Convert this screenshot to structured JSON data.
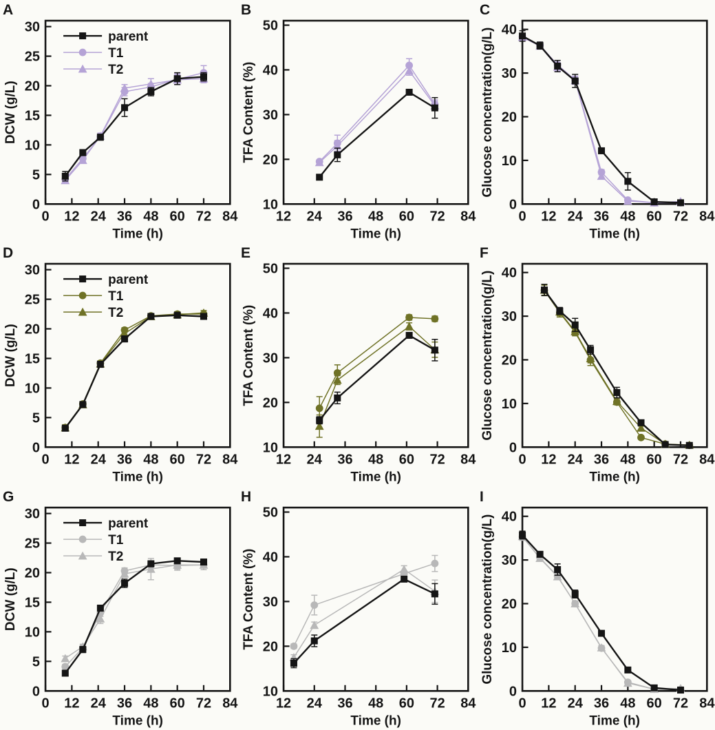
{
  "figure": {
    "background": "#fbfbf7",
    "ink_color": "#151515",
    "accent_colors": {
      "row1_purple": "#b5a3d6",
      "row2_olive": "#6f7226",
      "row3_gray": "#b8b8b8"
    }
  },
  "chart_data": [
    {
      "id": "A",
      "type": "line",
      "xlabel": "Time (h)",
      "ylabel": "DCW (g/L)",
      "xlim": [
        0,
        84
      ],
      "xticks": [
        0,
        12,
        24,
        36,
        48,
        60,
        72,
        84
      ],
      "ylim": [
        0,
        31
      ],
      "yticks": [
        0,
        5,
        10,
        15,
        20,
        25,
        30
      ],
      "legend": true,
      "legend_position": "upper-left",
      "grid": false,
      "x": [
        9,
        17,
        25,
        36,
        48,
        60,
        72
      ],
      "series": [
        {
          "name": "parent",
          "color": "#151515",
          "marker": "square",
          "values": [
            4.7,
            8.7,
            11.3,
            16.3,
            19.0,
            21.2,
            21.5
          ],
          "errors": [
            0.8,
            0.5,
            0.5,
            1.5,
            0.7,
            1.0,
            0.7
          ]
        },
        {
          "name": "T1",
          "color": "#b5a3d6",
          "marker": "circle",
          "values": [
            4.2,
            7.7,
            11.4,
            19.0,
            19.8,
            21.1,
            22.2
          ],
          "errors": [
            0.6,
            0.5,
            0.5,
            0.7,
            0.6,
            0.9,
            1.2
          ]
        },
        {
          "name": "T2",
          "color": "#b5a3d6",
          "marker": "triangle",
          "values": [
            4.0,
            7.4,
            11.5,
            19.6,
            20.3,
            21.0,
            21.2
          ],
          "errors": [
            0.5,
            0.4,
            0.5,
            0.6,
            0.9,
            0.8,
            0.7
          ]
        }
      ]
    },
    {
      "id": "B",
      "type": "line",
      "xlabel": "Time (h)",
      "ylabel": "TFA Content (%)",
      "xlim": [
        12,
        84
      ],
      "xticks": [
        12,
        24,
        36,
        48,
        60,
        72,
        84
      ],
      "ylim": [
        10,
        51
      ],
      "yticks": [
        10,
        20,
        30,
        40,
        50
      ],
      "legend": false,
      "grid": false,
      "x": [
        26,
        33,
        61,
        71
      ],
      "series": [
        {
          "name": "parent",
          "color": "#151515",
          "marker": "square",
          "values": [
            16.0,
            21.0,
            35.0,
            31.5
          ],
          "errors": [
            0.4,
            1.5,
            0.5,
            2.3
          ]
        },
        {
          "name": "T1",
          "color": "#b5a3d6",
          "marker": "circle",
          "values": [
            19.5,
            23.6,
            41.0,
            32.3
          ],
          "errors": [
            0.4,
            1.8,
            1.5,
            1.0
          ]
        },
        {
          "name": "T2",
          "color": "#b5a3d6",
          "marker": "triangle",
          "values": [
            19.3,
            23.0,
            39.8,
            32.0
          ],
          "errors": [
            0.4,
            1.2,
            1.0,
            1.0
          ]
        }
      ]
    },
    {
      "id": "C",
      "type": "line",
      "xlabel": "Time (h)",
      "ylabel": "Glucose concentration(g/L)",
      "xlim": [
        0,
        84
      ],
      "xticks": [
        0,
        12,
        24,
        36,
        48,
        60,
        72,
        84
      ],
      "ylim": [
        0,
        42
      ],
      "yticks": [
        0,
        10,
        20,
        30,
        40
      ],
      "legend": false,
      "grid": false,
      "x": [
        0,
        8,
        16,
        24,
        36,
        48,
        60,
        72
      ],
      "series": [
        {
          "name": "parent",
          "color": "#151515",
          "marker": "square",
          "values": [
            38.5,
            36.3,
            31.6,
            28.2,
            12.2,
            5.2,
            0.5,
            0.3
          ],
          "errors": [
            1.2,
            0.8,
            1.3,
            1.5,
            0.5,
            2.0,
            0.4,
            0.3
          ]
        },
        {
          "name": "T1",
          "color": "#b5a3d6",
          "marker": "circle",
          "values": [
            38.3,
            36.4,
            31.9,
            28.4,
            7.3,
            0.9,
            0.3,
            0.3
          ],
          "errors": [
            0.8,
            0.7,
            1.0,
            0.9,
            0.6,
            0.3,
            0.2,
            0.3
          ]
        },
        {
          "name": "T2",
          "color": "#b5a3d6",
          "marker": "triangle",
          "values": [
            38.2,
            36.2,
            31.4,
            28.3,
            6.4,
            0.7,
            0.3,
            0.6
          ],
          "errors": [
            0.8,
            0.7,
            1.0,
            0.9,
            0.5,
            0.3,
            0.2,
            0.3
          ]
        }
      ]
    },
    {
      "id": "D",
      "type": "line",
      "xlabel": "Time (h)",
      "ylabel": "DCW (g/L)",
      "xlim": [
        0,
        84
      ],
      "xticks": [
        0,
        12,
        24,
        36,
        48,
        60,
        72,
        84
      ],
      "ylim": [
        0,
        31
      ],
      "yticks": [
        0,
        5,
        10,
        15,
        20,
        25,
        30
      ],
      "legend": true,
      "legend_position": "upper-left",
      "grid": false,
      "x": [
        9,
        17,
        25,
        36,
        48,
        60,
        72
      ],
      "series": [
        {
          "name": "parent",
          "color": "#151515",
          "marker": "square",
          "values": [
            3.2,
            7.2,
            14.0,
            18.3,
            22.1,
            22.3,
            22.1
          ],
          "errors": [
            0.4,
            0.4,
            0.5,
            0.5,
            0.3,
            0.4,
            0.3
          ]
        },
        {
          "name": "T1",
          "color": "#6f7226",
          "marker": "circle",
          "values": [
            3.3,
            7.3,
            14.2,
            19.8,
            22.2,
            22.5,
            22.5
          ],
          "errors": [
            0.3,
            0.4,
            0.4,
            0.4,
            0.3,
            0.4,
            0.3
          ]
        },
        {
          "name": "T2",
          "color": "#6f7226",
          "marker": "triangle",
          "values": [
            3.3,
            7.2,
            14.1,
            19.2,
            22.1,
            22.4,
            22.7
          ],
          "errors": [
            0.5,
            0.5,
            0.4,
            0.4,
            0.3,
            0.4,
            0.4
          ]
        }
      ]
    },
    {
      "id": "E",
      "type": "line",
      "xlabel": "Time (h)",
      "ylabel": "TFA Content (%)",
      "xlim": [
        12,
        84
      ],
      "xticks": [
        12,
        24,
        36,
        48,
        60,
        72,
        84
      ],
      "ylim": [
        10,
        51
      ],
      "yticks": [
        10,
        20,
        30,
        40,
        50
      ],
      "legend": false,
      "grid": false,
      "x": [
        26,
        33,
        61,
        71
      ],
      "series": [
        {
          "name": "parent",
          "color": "#151515",
          "marker": "square",
          "values": [
            16.0,
            21.0,
            35.0,
            31.7
          ],
          "errors": [
            0.8,
            1.3,
            0.5,
            2.4
          ]
        },
        {
          "name": "T1",
          "color": "#6f7226",
          "marker": "circle",
          "values": [
            18.7,
            26.6,
            39.0,
            38.7
          ],
          "errors": [
            2.6,
            1.8,
            0.6,
            0.6
          ]
        },
        {
          "name": "T2",
          "color": "#6f7226",
          "marker": "triangle",
          "values": [
            14.7,
            25.0,
            37.0,
            31.8
          ],
          "errors": [
            2.5,
            1.0,
            0.8,
            1.7
          ]
        }
      ]
    },
    {
      "id": "F",
      "type": "line",
      "xlabel": "Time (h)",
      "ylabel": "Glucose concentration(g/L)",
      "xlim": [
        0,
        84
      ],
      "xticks": [
        0,
        12,
        24,
        36,
        48,
        60,
        72,
        84
      ],
      "ylim": [
        0,
        42
      ],
      "yticks": [
        0,
        10,
        20,
        30,
        40
      ],
      "legend": false,
      "grid": false,
      "x": [
        10,
        17,
        24,
        31,
        43,
        54,
        65,
        76
      ],
      "series": [
        {
          "name": "parent",
          "color": "#151515",
          "marker": "square",
          "values": [
            36.0,
            31.2,
            28.0,
            22.3,
            12.5,
            5.6,
            0.6,
            0.4
          ],
          "errors": [
            1.3,
            0.8,
            1.5,
            1.0,
            1.2,
            0.4,
            0.2,
            0.2
          ]
        },
        {
          "name": "T1",
          "color": "#6f7226",
          "marker": "circle",
          "values": [
            35.9,
            30.8,
            26.3,
            20.0,
            10.3,
            2.2,
            0.7,
            0.4
          ],
          "errors": [
            1.2,
            1.0,
            0.8,
            1.3,
            0.6,
            0.4,
            0.2,
            0.2
          ]
        },
        {
          "name": "T2",
          "color": "#6f7226",
          "marker": "triangle",
          "values": [
            36.0,
            31.0,
            26.5,
            20.3,
            10.5,
            4.4,
            0.7,
            0.5
          ],
          "errors": [
            1.2,
            0.9,
            0.8,
            1.0,
            0.7,
            0.4,
            0.2,
            0.2
          ]
        }
      ]
    },
    {
      "id": "G",
      "type": "line",
      "xlabel": "Time (h)",
      "ylabel": "DCW (g/L)",
      "xlim": [
        0,
        84
      ],
      "xticks": [
        0,
        12,
        24,
        36,
        48,
        60,
        72,
        84
      ],
      "ylim": [
        0,
        31
      ],
      "yticks": [
        0,
        5,
        10,
        15,
        20,
        25,
        30
      ],
      "legend": true,
      "legend_position": "upper-left",
      "grid": false,
      "x": [
        9,
        17,
        25,
        36,
        48,
        60,
        72
      ],
      "series": [
        {
          "name": "parent",
          "color": "#151515",
          "marker": "square",
          "values": [
            3.0,
            7.0,
            14.0,
            18.2,
            21.5,
            22.0,
            21.8
          ],
          "errors": [
            0.4,
            0.5,
            0.5,
            0.7,
            0.5,
            0.4,
            0.5
          ]
        },
        {
          "name": "T1",
          "color": "#b8b8b8",
          "marker": "circle",
          "values": [
            4.1,
            7.3,
            13.2,
            20.3,
            21.3,
            21.2,
            21.3
          ],
          "errors": [
            0.4,
            0.4,
            0.6,
            0.5,
            0.6,
            0.8,
            0.8
          ]
        },
        {
          "name": "T2",
          "color": "#b8b8b8",
          "marker": "triangle",
          "values": [
            5.5,
            7.5,
            12.2,
            19.8,
            20.6,
            21.3,
            21.3
          ],
          "errors": [
            0.4,
            0.4,
            0.8,
            0.6,
            1.8,
            0.7,
            0.8
          ]
        }
      ]
    },
    {
      "id": "H",
      "type": "line",
      "xlabel": "Time (h)",
      "ylabel": "TFA Content (%)",
      "xlim": [
        12,
        84
      ],
      "xticks": [
        12,
        24,
        36,
        48,
        60,
        72,
        84
      ],
      "ylim": [
        10,
        51
      ],
      "yticks": [
        10,
        20,
        30,
        40,
        50
      ],
      "legend": false,
      "grid": false,
      "x": [
        16,
        24,
        59,
        71
      ],
      "series": [
        {
          "name": "parent",
          "color": "#151515",
          "marker": "square",
          "values": [
            16.2,
            21.2,
            35.0,
            31.7
          ],
          "errors": [
            1.0,
            1.3,
            0.4,
            2.3
          ]
        },
        {
          "name": "T1",
          "color": "#b8b8b8",
          "marker": "circle",
          "values": [
            20.0,
            29.2,
            36.2,
            38.5
          ],
          "errors": [
            0.5,
            2.2,
            0.7,
            1.8
          ]
        },
        {
          "name": "T2",
          "color": "#b8b8b8",
          "marker": "triangle",
          "values": [
            17.5,
            24.7,
            37.2,
            32.3
          ],
          "errors": [
            0.6,
            0.7,
            0.8,
            2.5
          ]
        }
      ]
    },
    {
      "id": "I",
      "type": "line",
      "xlabel": "Time (h)",
      "ylabel": "Glucose concentration(g/L)",
      "xlim": [
        0,
        84
      ],
      "xticks": [
        0,
        12,
        24,
        36,
        48,
        60,
        72,
        84
      ],
      "ylim": [
        0,
        42
      ],
      "yticks": [
        0,
        10,
        20,
        30,
        40
      ],
      "legend": false,
      "grid": false,
      "x": [
        0,
        8,
        16,
        24,
        36,
        48,
        60,
        72
      ],
      "series": [
        {
          "name": "parent",
          "color": "#151515",
          "marker": "square",
          "values": [
            35.7,
            31.3,
            27.8,
            22.2,
            13.2,
            4.8,
            0.7,
            0.2
          ],
          "errors": [
            0.9,
            0.4,
            1.3,
            0.9,
            0.6,
            0.4,
            0.2,
            0.1
          ]
        },
        {
          "name": "T1",
          "color": "#b8b8b8",
          "marker": "circle",
          "values": [
            35.3,
            30.5,
            26.3,
            20.0,
            9.8,
            2.0,
            0.4,
            0.3
          ],
          "errors": [
            0.8,
            0.5,
            0.7,
            0.6,
            0.5,
            0.3,
            0.2,
            0.2
          ]
        },
        {
          "name": "T2",
          "color": "#b8b8b8",
          "marker": "triangle",
          "values": [
            35.4,
            30.4,
            26.2,
            20.0,
            9.9,
            1.8,
            0.4,
            0.6
          ],
          "errors": [
            0.8,
            0.5,
            0.7,
            0.6,
            0.5,
            0.3,
            0.2,
            0.3
          ]
        }
      ]
    }
  ]
}
